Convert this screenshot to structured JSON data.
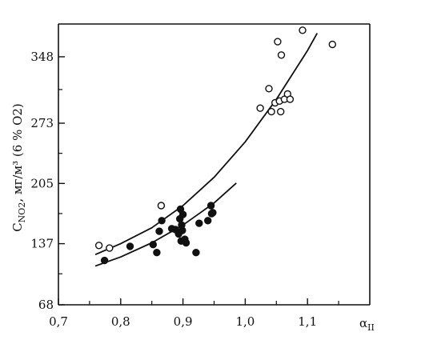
{
  "chart_data": {
    "type": "scatter",
    "title": "",
    "xlabel": "α_II",
    "ylabel": "C_NO2, мг/м³ (6 % O2)",
    "xlim": [
      0.7,
      1.2
    ],
    "ylim": [
      68,
      385
    ],
    "x_ticks": [
      {
        "value": 0.7,
        "label": "0,7"
      },
      {
        "value": 0.8,
        "label": "0,8"
      },
      {
        "value": 0.9,
        "label": "0,9"
      },
      {
        "value": 1.0,
        "label": "1,0"
      },
      {
        "value": 1.1,
        "label": "1,1"
      }
    ],
    "x_minor_ticks": [
      0.75,
      0.85,
      0.95,
      1.05,
      1.15
    ],
    "y_ticks": [
      {
        "value": 68,
        "label": "68"
      },
      {
        "value": 137,
        "label": "137"
      },
      {
        "value": 205,
        "label": "205"
      },
      {
        "value": 273,
        "label": "273"
      },
      {
        "value": 348,
        "label": "348"
      }
    ],
    "y_minor_ticks": [
      103,
      171,
      239,
      311
    ],
    "grid": false,
    "legend": "none",
    "series": [
      {
        "marker": "open-circle",
        "points": [
          [
            0.765,
            135
          ],
          [
            0.782,
            132
          ],
          [
            0.865,
            180
          ],
          [
            1.024,
            290
          ],
          [
            1.038,
            312
          ],
          [
            1.042,
            286
          ],
          [
            1.048,
            296
          ],
          [
            1.052,
            365
          ],
          [
            1.055,
            298
          ],
          [
            1.057,
            286
          ],
          [
            1.058,
            350
          ],
          [
            1.063,
            300
          ],
          [
            1.068,
            306
          ],
          [
            1.072,
            300
          ],
          [
            1.092,
            378
          ],
          [
            1.14,
            362
          ]
        ]
      },
      {
        "marker": "filled-circle",
        "points": [
          [
            0.774,
            118
          ],
          [
            0.815,
            134
          ],
          [
            0.852,
            136
          ],
          [
            0.858,
            127
          ],
          [
            0.862,
            151
          ],
          [
            0.866,
            163
          ],
          [
            0.882,
            154
          ],
          [
            0.888,
            153
          ],
          [
            0.893,
            148
          ],
          [
            0.895,
            165
          ],
          [
            0.896,
            176
          ],
          [
            0.897,
            140
          ],
          [
            0.898,
            158
          ],
          [
            0.899,
            152
          ],
          [
            0.9,
            170
          ],
          [
            0.903,
            142
          ],
          [
            0.905,
            138
          ],
          [
            0.921,
            127
          ],
          [
            0.926,
            160
          ],
          [
            0.94,
            163
          ],
          [
            0.945,
            180
          ],
          [
            0.946,
            171
          ],
          [
            0.948,
            172
          ]
        ]
      }
    ],
    "curves": [
      {
        "style": "solid",
        "points": [
          [
            0.76,
            125
          ],
          [
            0.8,
            137
          ],
          [
            0.85,
            155
          ],
          [
            0.9,
            180
          ],
          [
            0.95,
            212
          ],
          [
            1.0,
            252
          ],
          [
            1.05,
            300
          ],
          [
            1.1,
            355
          ],
          [
            1.115,
            374
          ]
        ]
      },
      {
        "style": "solid",
        "points": [
          [
            0.76,
            112
          ],
          [
            0.8,
            122
          ],
          [
            0.85,
            138
          ],
          [
            0.9,
            158
          ],
          [
            0.95,
            183
          ],
          [
            0.985,
            205
          ]
        ]
      }
    ]
  }
}
